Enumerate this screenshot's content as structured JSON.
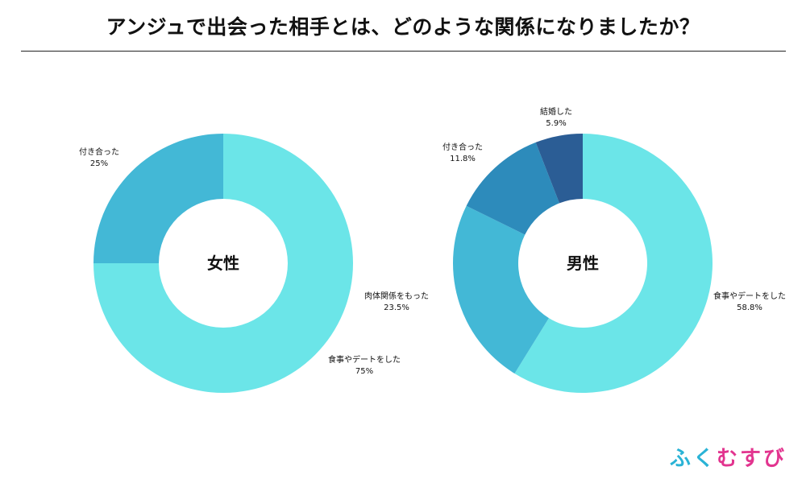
{
  "title": "アンジュで出会った相手とは、どのような関係になりましたか？",
  "logo": {
    "chars": [
      "ふ",
      "く",
      "む",
      "す",
      "び"
    ],
    "colors": [
      "#2ab3d6",
      "#2ab3d6",
      "#e2348f",
      "#e2348f",
      "#e2348f"
    ]
  },
  "chart_data": [
    {
      "type": "pie",
      "center_label": "女性",
      "slices": [
        {
          "label": "食事やデートをした",
          "value": 75,
          "value_label": "75%",
          "color": "#6be5e8"
        },
        {
          "label": "付き合った",
          "value": 25,
          "value_label": "25%",
          "color": "#43b8d6"
        }
      ]
    },
    {
      "type": "pie",
      "center_label": "男性",
      "slices": [
        {
          "label": "食事やデートをした",
          "value": 58.8,
          "value_label": "58.8%",
          "color": "#6be5e8"
        },
        {
          "label": "肉体関係をもった",
          "value": 23.5,
          "value_label": "23.5%",
          "color": "#43b8d6"
        },
        {
          "label": "付き合った",
          "value": 11.8,
          "value_label": "11.8%",
          "color": "#2d8bbb"
        },
        {
          "label": "結婚した",
          "value": 5.9,
          "value_label": "5.9%",
          "color": "#2b5d95"
        }
      ]
    }
  ]
}
